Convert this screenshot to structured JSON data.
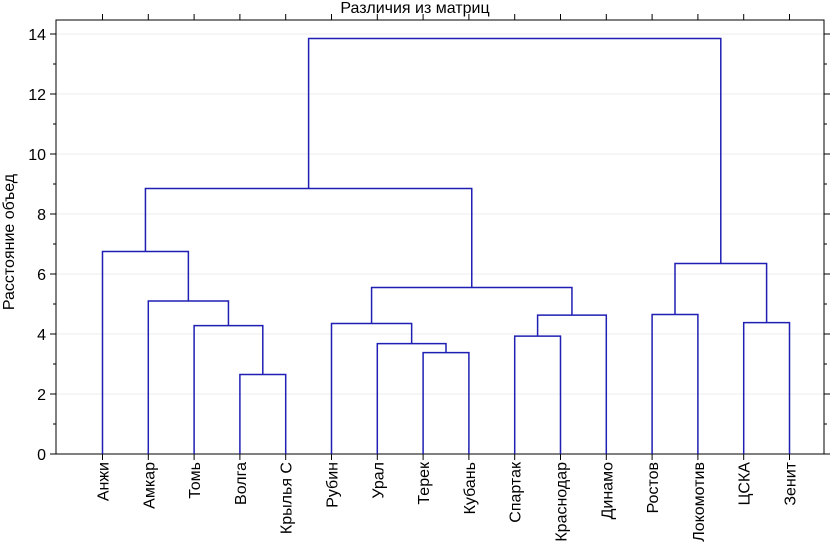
{
  "chart_data": {
    "type": "dendrogram",
    "title": "Различия из матриц",
    "ylabel": "Расстояние объед",
    "xlabel": "",
    "ylim": [
      0,
      14
    ],
    "yticks": [
      0,
      2,
      4,
      6,
      8,
      10,
      12,
      14
    ],
    "grid": true,
    "line_color": "#1f1fb4",
    "leaves": [
      "Анжи",
      "Амкар",
      "Томь",
      "Волга",
      "Крылья С",
      "Рубин",
      "Урал",
      "Терек",
      "Кубань",
      "Спартак",
      "Краснодар",
      "Динамо",
      "Ростов",
      "Локомотив",
      "ЦСКА",
      "Зенит"
    ],
    "merges": [
      {
        "left": "Волга",
        "right": "Крылья С",
        "height": 2.65
      },
      {
        "left": "Терек",
        "right": "Кубань",
        "height": 3.38
      },
      {
        "left": "Урал",
        "right": "Терек+Кубань",
        "height": 3.68
      },
      {
        "left": "Спартак",
        "right": "Краснодар",
        "height": 3.93
      },
      {
        "left": "Томь",
        "right": "Волга+Крылья С",
        "height": 4.28
      },
      {
        "left": "Рубин",
        "right": "Урал+Терек+Кубань",
        "height": 4.35
      },
      {
        "left": "ЦСКА",
        "right": "Зенит",
        "height": 4.38
      },
      {
        "left": "Спартак+Краснодар",
        "right": "Динамо",
        "height": 4.63
      },
      {
        "left": "Ростов",
        "right": "Локомотив",
        "height": 4.65
      },
      {
        "left": "Амкар",
        "right": "Томь+Волга+Крылья С",
        "height": 5.1
      },
      {
        "left": "Рубин+Урал+Терек+Кубань",
        "right": "Спартак+Краснодар+Динамо",
        "height": 5.55
      },
      {
        "left": "Ростов+Локомотив",
        "right": "ЦСКА+Зенит",
        "height": 6.35
      },
      {
        "left": "Анжи",
        "right": "Амкар+Томь+Волга+Крылья С",
        "height": 6.75
      },
      {
        "left": "Анжи+Амкар+Томь+Волга+Крылья С",
        "right": "Рубин+…+Динамо",
        "height": 8.85
      },
      {
        "left": "Анжи+…+Динамо",
        "right": "Ростов+Локомотив+ЦСКА+Зенит",
        "height": 13.85
      }
    ]
  }
}
